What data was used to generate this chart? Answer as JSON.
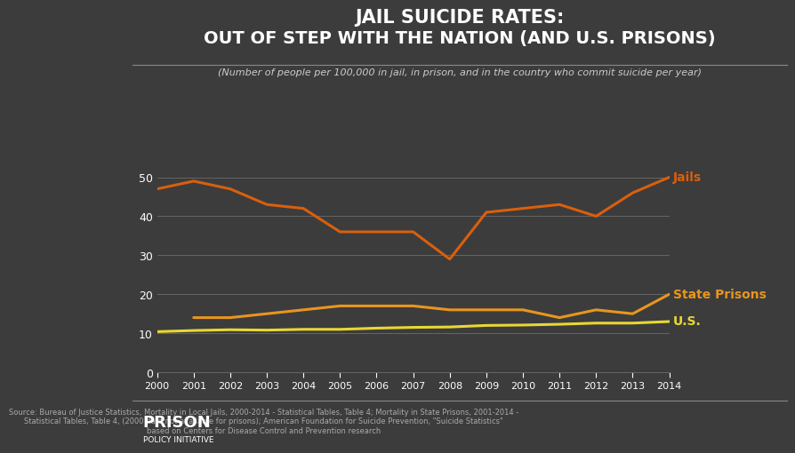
{
  "years": [
    2000,
    2001,
    2002,
    2003,
    2004,
    2005,
    2006,
    2007,
    2008,
    2009,
    2010,
    2011,
    2012,
    2013,
    2014
  ],
  "jails": [
    47,
    49,
    47,
    43,
    42,
    36,
    36,
    36,
    29,
    41,
    42,
    43,
    40,
    46,
    50
  ],
  "state_prisons": [
    null,
    14,
    14,
    15,
    16,
    17,
    17,
    17,
    16,
    16,
    16,
    14,
    16,
    15,
    20
  ],
  "us_general": [
    10.4,
    10.7,
    10.9,
    10.8,
    11.0,
    11.0,
    11.3,
    11.5,
    11.6,
    12.0,
    12.1,
    12.3,
    12.6,
    12.6,
    13.0
  ],
  "jails_color": "#d95f0e",
  "prisons_color": "#e8961e",
  "us_color": "#e8d832",
  "bg_color": "#3c3c3c",
  "plot_bg_color": "#3c3c3c",
  "text_color": "#ffffff",
  "grid_color": "#666666",
  "title_line1": "JAIL SUICIDE RATES:",
  "title_line2": "OUT OF STEP WITH THE NATION (AND U.S. PRISONS)",
  "subtitle": "(Number of people per 100,000 in jail, in prison, and in the country who commit suicide per year)",
  "label_jails": "Jails",
  "label_prisons": "State Prisons",
  "label_us": "U.S.",
  "source_text": "Source: Bureau of Justice Statistics, Mortality in Local Jails, 2000-2014 - Statistical Tables, Table 4; Mortality in State Prisons, 2001-2014 -\nStatistical Tables, Table 4, (2000 data not available for prisons); American Foundation for Suicide Prevention, \"Suicide Statistics\"\nbased on Centers for Disease Control and Prevention research",
  "ylim": [
    0,
    55
  ],
  "yticks": [
    0,
    10,
    20,
    30,
    40,
    50
  ],
  "logo_text_big": "PRISON",
  "logo_text_small": "POLICY INITIATIVE"
}
